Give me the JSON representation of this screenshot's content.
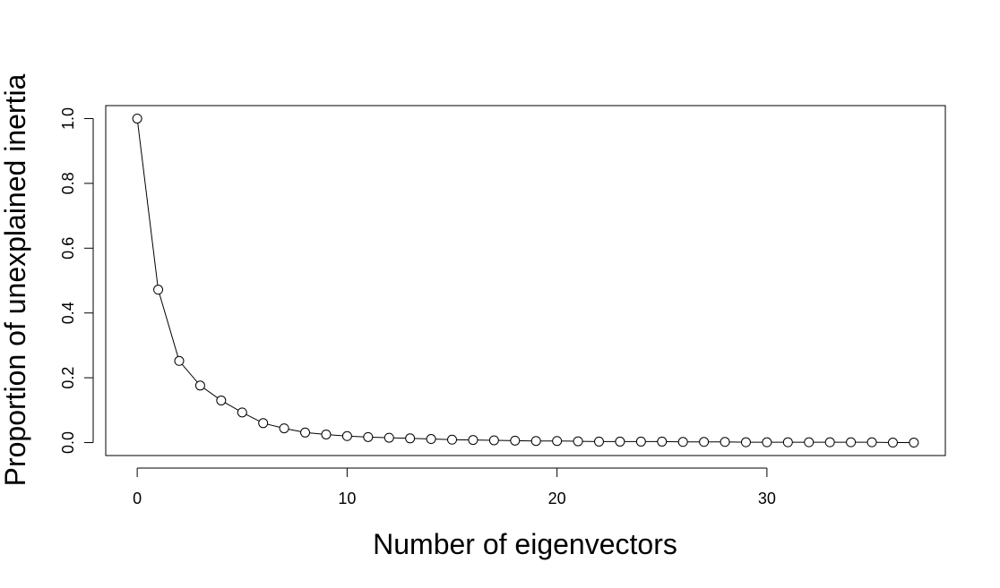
{
  "chart_data": {
    "type": "line",
    "title": "",
    "xlabel": "Number of eigenvectors",
    "ylabel": "Proportion of unexplained inertia",
    "xlim": [
      -1.5,
      38.5
    ],
    "ylim": [
      -0.04,
      1.04
    ],
    "x_ticks": [
      0,
      10,
      20,
      30
    ],
    "x_tick_labels": [
      "0",
      "10",
      "20",
      "30"
    ],
    "y_ticks": [
      0.0,
      0.2,
      0.4,
      0.6,
      0.8,
      1.0
    ],
    "y_tick_labels": [
      "0.0",
      "0.2",
      "0.4",
      "0.6",
      "0.8",
      "1.0"
    ],
    "grid": false,
    "legend": "none",
    "marker": "open-circle",
    "colors": {
      "line": "#000000",
      "marker_stroke": "#000000",
      "marker_fill": "#ffffff",
      "axis": "#000000",
      "background": "#ffffff"
    },
    "x": [
      0,
      1,
      2,
      3,
      4,
      5,
      6,
      7,
      8,
      9,
      10,
      11,
      12,
      13,
      14,
      15,
      16,
      17,
      18,
      19,
      20,
      21,
      22,
      23,
      24,
      25,
      26,
      27,
      28,
      29,
      30,
      31,
      32,
      33,
      34,
      35,
      36,
      37
    ],
    "y": [
      1.0,
      0.472,
      0.252,
      0.176,
      0.13,
      0.093,
      0.06,
      0.044,
      0.031,
      0.025,
      0.02,
      0.017,
      0.015,
      0.013,
      0.011,
      0.009,
      0.008,
      0.007,
      0.006,
      0.005,
      0.005,
      0.004,
      0.003,
      0.003,
      0.003,
      0.003,
      0.002,
      0.002,
      0.002,
      0.001,
      0.001,
      0.001,
      0.001,
      0.001,
      0.001,
      0.001,
      0.0,
      0.0
    ]
  }
}
